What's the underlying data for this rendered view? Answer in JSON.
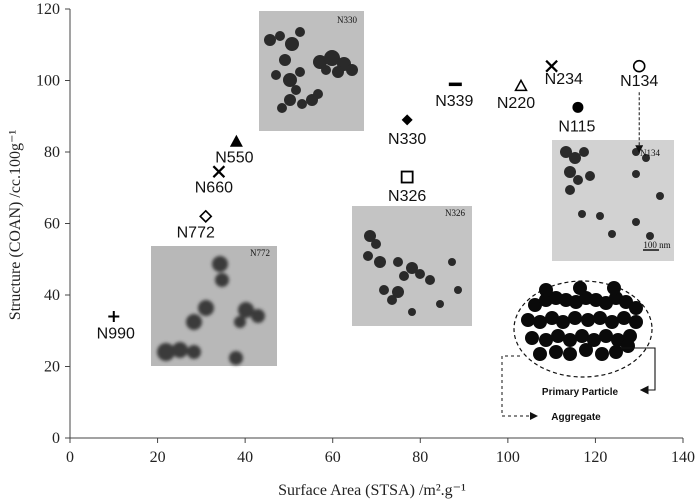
{
  "chart_data": {
    "type": "scatter",
    "xlabel": "Surface Area (STSA) /m².g⁻¹",
    "ylabel": "Structure (COAN) /cc.100g⁻¹",
    "xlim": [
      0,
      140
    ],
    "ylim": [
      0,
      120
    ],
    "x_ticks": [
      "0",
      "20",
      "40",
      "60",
      "80",
      "100",
      "120",
      "140"
    ],
    "y_ticks": [
      "0",
      "20",
      "40",
      "60",
      "80",
      "100",
      "120"
    ],
    "grid": false,
    "points": [
      {
        "label": "N990",
        "x": 10,
        "y": 34,
        "marker": "plus"
      },
      {
        "label": "N772",
        "x": 31,
        "y": 62,
        "marker": "diamond-open"
      },
      {
        "label": "N660",
        "x": 34,
        "y": 74.5,
        "marker": "x"
      },
      {
        "label": "N550",
        "x": 38,
        "y": 83,
        "marker": "triangle-filled"
      },
      {
        "label": "N330",
        "x": 77,
        "y": 89,
        "marker": "diamond-filled"
      },
      {
        "label": "N326",
        "x": 77,
        "y": 73,
        "marker": "square-open"
      },
      {
        "label": "N339",
        "x": 88,
        "y": 99,
        "marker": "dash"
      },
      {
        "label": "N220",
        "x": 103,
        "y": 98.5,
        "marker": "triangle-open"
      },
      {
        "label": "N234",
        "x": 110,
        "y": 104,
        "marker": "x"
      },
      {
        "label": "N115",
        "x": 116,
        "y": 92.5,
        "marker": "circle-filled"
      },
      {
        "label": "N134",
        "x": 130,
        "y": 104,
        "marker": "circle-open"
      }
    ],
    "inset_images": [
      {
        "label": "N330"
      },
      {
        "label": "N326"
      },
      {
        "label": "N772"
      },
      {
        "label": "N134"
      }
    ],
    "inset_scale_label": "100 nm",
    "diagram_labels": {
      "primary_particle": "Primary Particle",
      "aggregate": "Aggregate"
    }
  }
}
